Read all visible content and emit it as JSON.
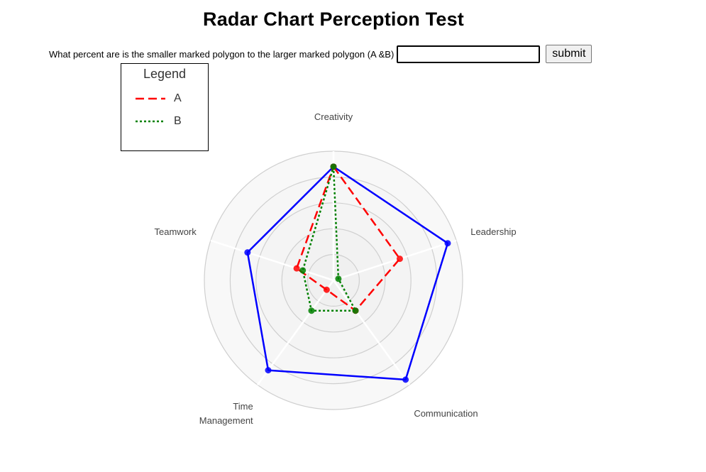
{
  "page": {
    "title": "Radar Chart Perception Test",
    "question": "What percent are is the smaller marked polygon to the larger marked polygon (A &B)",
    "input_value": "",
    "submit_label": "submit"
  },
  "legend": {
    "title": "Legend",
    "items": [
      {
        "label": "A",
        "color": "#ff0000",
        "style": "dashed"
      },
      {
        "label": "B",
        "color": "#008000",
        "style": "dotted"
      }
    ]
  },
  "chart_data": {
    "type": "radar",
    "axes": [
      "Creativity",
      "Leadership",
      "Communication",
      "Time Management",
      "Teamwork"
    ],
    "axis_label_lines": [
      [
        "Creativity"
      ],
      [
        "Leadership"
      ],
      [
        "Communication"
      ],
      [
        "Time",
        "Management"
      ],
      [
        "Teamwork"
      ]
    ],
    "range": [
      0,
      1
    ],
    "grid_rings": 5,
    "series": [
      {
        "color": "#0000ff",
        "style": "solid",
        "values": [
          0.88,
          0.93,
          0.95,
          0.86,
          0.7
        ]
      },
      {
        "label": "A",
        "color": "#ff0000",
        "style": "dashed",
        "values": [
          0.88,
          0.54,
          0.29,
          0.09,
          0.3
        ]
      },
      {
        "label": "B",
        "color": "#008000",
        "style": "dotted",
        "values": [
          0.88,
          0.04,
          0.29,
          0.29,
          0.25
        ]
      }
    ]
  }
}
